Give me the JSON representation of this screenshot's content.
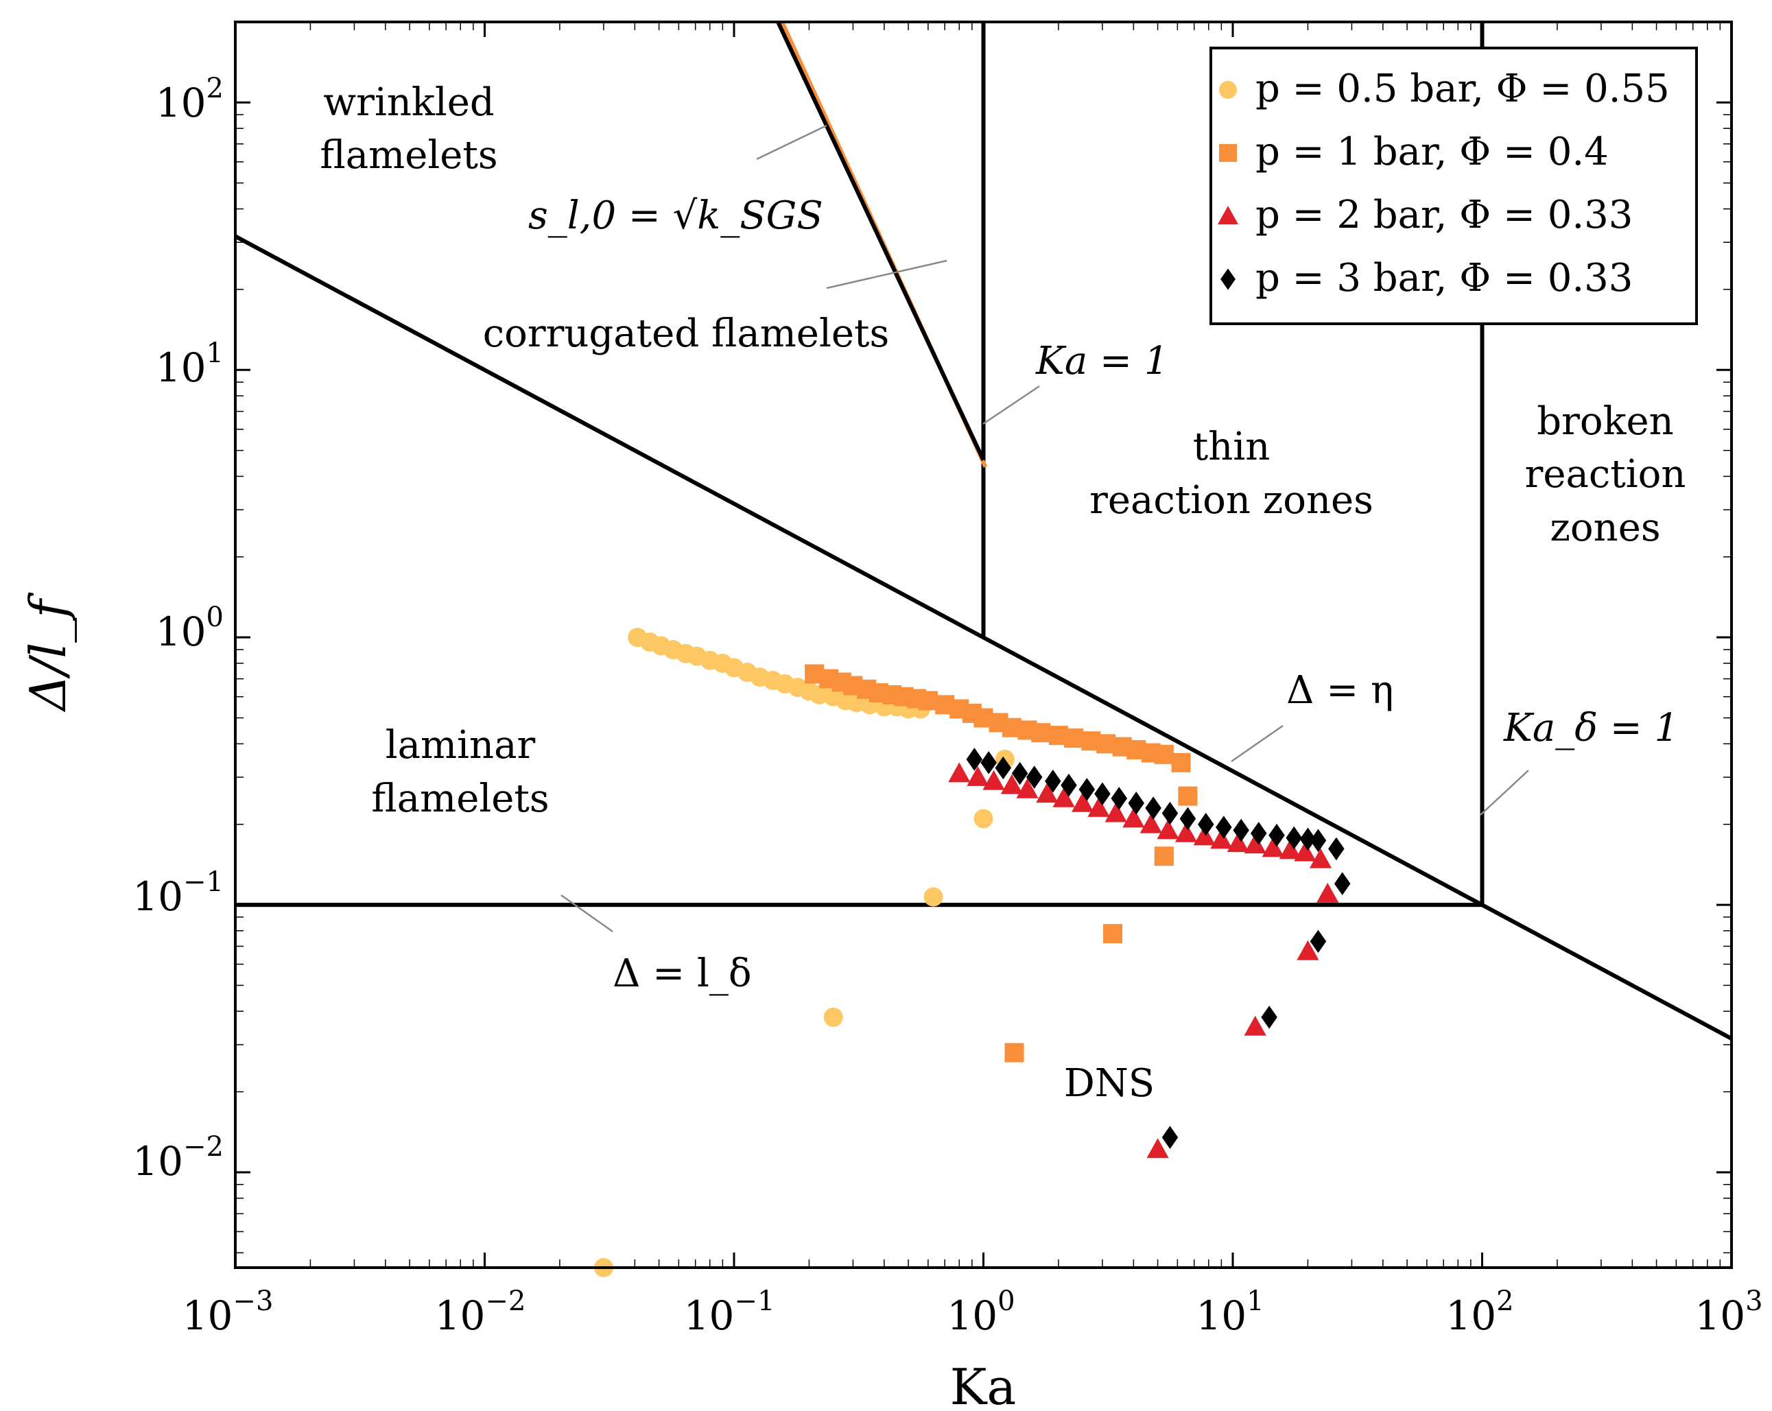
{
  "chart_data": {
    "type": "scatter",
    "xscale": "log",
    "yscale": "log",
    "xlim": [
      0.001,
      1000
    ],
    "ylim": [
      0.0044,
      200
    ],
    "xlabel": "Ka",
    "ylabel": "Δ/l_f",
    "x_ticks": [
      {
        "base": "10",
        "exp": "−3"
      },
      {
        "base": "10",
        "exp": "−2"
      },
      {
        "base": "10",
        "exp": "−1"
      },
      {
        "base": "10",
        "exp": "0"
      },
      {
        "base": "10",
        "exp": "1"
      },
      {
        "base": "10",
        "exp": "2"
      },
      {
        "base": "10",
        "exp": "3"
      }
    ],
    "y_ticks": [
      {
        "base": "10",
        "exp": "−2"
      },
      {
        "base": "10",
        "exp": "−1"
      },
      {
        "base": "10",
        "exp": "0"
      },
      {
        "base": "10",
        "exp": "1"
      },
      {
        "base": "10",
        "exp": "2"
      }
    ],
    "boundaries": {
      "delta_eq_eta": {
        "label": "Δ = η",
        "points": [
          [
            0.001,
            31.6
          ],
          [
            1000,
            0.0316
          ]
        ]
      },
      "delta_eq_l_delta": {
        "label": "Δ = l_δ",
        "points": [
          [
            0.001,
            0.1
          ],
          [
            100,
            0.1
          ]
        ]
      },
      "ka_eq_1": {
        "label": "Ka = 1",
        "points": [
          [
            1,
            1.0
          ],
          [
            1,
            200
          ]
        ]
      },
      "ka_delta_eq_1": {
        "label": "Ka_δ = 1",
        "points": [
          [
            100,
            0.1
          ],
          [
            100,
            200
          ]
        ]
      },
      "s_eq_sqrt_k": {
        "label": "s_l,0 = √k_SGS",
        "points": [
          [
            0.15,
            200
          ],
          [
            1,
            4.6
          ]
        ]
      }
    },
    "regions": {
      "wrinkled": [
        "wrinkled",
        "flamelets"
      ],
      "corrugated": "corrugated flamelets",
      "thin": [
        "thin",
        "reaction zones"
      ],
      "broken": [
        "broken",
        "reaction",
        "zones"
      ],
      "laminar": [
        "laminar",
        "flamelets"
      ],
      "dns": "DNS"
    },
    "series": [
      {
        "name": "p = 0.5 bar, Φ = 0.55",
        "marker": "circle",
        "color": "#FDC763",
        "points": [
          [
            0.041,
            1.0
          ],
          [
            0.046,
            0.96
          ],
          [
            0.051,
            0.93
          ],
          [
            0.057,
            0.9
          ],
          [
            0.064,
            0.87
          ],
          [
            0.071,
            0.85
          ],
          [
            0.08,
            0.82
          ],
          [
            0.09,
            0.8
          ],
          [
            0.1,
            0.77
          ],
          [
            0.113,
            0.74
          ],
          [
            0.127,
            0.71
          ],
          [
            0.143,
            0.69
          ],
          [
            0.16,
            0.67
          ],
          [
            0.18,
            0.65
          ],
          [
            0.2,
            0.63
          ],
          [
            0.22,
            0.61
          ],
          [
            0.25,
            0.6
          ],
          [
            0.28,
            0.58
          ],
          [
            0.31,
            0.57
          ],
          [
            0.35,
            0.56
          ],
          [
            0.4,
            0.55
          ],
          [
            0.45,
            0.55
          ],
          [
            0.5,
            0.54
          ],
          [
            0.56,
            0.54
          ],
          [
            1.22,
            0.35
          ],
          [
            1.0,
            0.21
          ],
          [
            0.63,
            0.107
          ],
          [
            0.25,
            0.038
          ],
          [
            0.03,
            0.0044
          ]
        ]
      },
      {
        "name": "p = 1 bar, Φ = 0.4",
        "marker": "square",
        "color": "#F98E3B",
        "points": [
          [
            0.21,
            0.73
          ],
          [
            0.24,
            0.7
          ],
          [
            0.27,
            0.68
          ],
          [
            0.3,
            0.66
          ],
          [
            0.34,
            0.64
          ],
          [
            0.38,
            0.62
          ],
          [
            0.43,
            0.61
          ],
          [
            0.48,
            0.6
          ],
          [
            0.54,
            0.59
          ],
          [
            0.6,
            0.58
          ],
          [
            0.7,
            0.56
          ],
          [
            0.8,
            0.54
          ],
          [
            0.9,
            0.52
          ],
          [
            1.0,
            0.5
          ],
          [
            1.15,
            0.48
          ],
          [
            1.3,
            0.46
          ],
          [
            1.5,
            0.45
          ],
          [
            1.7,
            0.44
          ],
          [
            2.0,
            0.43
          ],
          [
            2.3,
            0.42
          ],
          [
            2.7,
            0.41
          ],
          [
            3.1,
            0.4
          ],
          [
            3.6,
            0.39
          ],
          [
            4.1,
            0.38
          ],
          [
            4.7,
            0.37
          ],
          [
            5.3,
            0.365
          ],
          [
            6.2,
            0.34
          ],
          [
            6.6,
            0.255
          ],
          [
            5.3,
            0.152
          ],
          [
            3.3,
            0.078
          ],
          [
            1.33,
            0.028
          ]
        ]
      },
      {
        "name": "p = 2 bar, Φ = 0.33",
        "marker": "triangle",
        "color": "#E0202A",
        "points": [
          [
            0.8,
            0.31
          ],
          [
            0.95,
            0.3
          ],
          [
            1.1,
            0.29
          ],
          [
            1.3,
            0.28
          ],
          [
            1.5,
            0.27
          ],
          [
            1.8,
            0.26
          ],
          [
            2.1,
            0.25
          ],
          [
            2.5,
            0.24
          ],
          [
            2.9,
            0.23
          ],
          [
            3.4,
            0.22
          ],
          [
            4.0,
            0.21
          ],
          [
            4.7,
            0.2
          ],
          [
            5.5,
            0.19
          ],
          [
            6.5,
            0.185
          ],
          [
            7.7,
            0.18
          ],
          [
            9.0,
            0.175
          ],
          [
            10.5,
            0.17
          ],
          [
            12.3,
            0.168
          ],
          [
            14.5,
            0.163
          ],
          [
            17.0,
            0.16
          ],
          [
            19.5,
            0.157
          ],
          [
            22.5,
            0.148
          ],
          [
            24.0,
            0.11
          ],
          [
            20.0,
            0.067
          ],
          [
            12.3,
            0.035
          ],
          [
            5.0,
            0.0122
          ]
        ]
      },
      {
        "name": "p = 3 bar, Φ = 0.33",
        "marker": "diamond",
        "color": "#000000",
        "points": [
          [
            0.92,
            0.35
          ],
          [
            1.05,
            0.34
          ],
          [
            1.2,
            0.325
          ],
          [
            1.4,
            0.31
          ],
          [
            1.6,
            0.3
          ],
          [
            1.9,
            0.29
          ],
          [
            2.2,
            0.28
          ],
          [
            2.6,
            0.27
          ],
          [
            3.0,
            0.26
          ],
          [
            3.5,
            0.25
          ],
          [
            4.1,
            0.24
          ],
          [
            4.8,
            0.23
          ],
          [
            5.6,
            0.22
          ],
          [
            6.6,
            0.21
          ],
          [
            7.8,
            0.2
          ],
          [
            9.2,
            0.195
          ],
          [
            10.8,
            0.19
          ],
          [
            12.7,
            0.185
          ],
          [
            15.0,
            0.182
          ],
          [
            17.6,
            0.178
          ],
          [
            20.0,
            0.176
          ],
          [
            22.0,
            0.174
          ],
          [
            26.0,
            0.162
          ],
          [
            27.5,
            0.12
          ],
          [
            22.0,
            0.073
          ],
          [
            14.0,
            0.038
          ],
          [
            5.6,
            0.0135
          ]
        ]
      }
    ]
  }
}
